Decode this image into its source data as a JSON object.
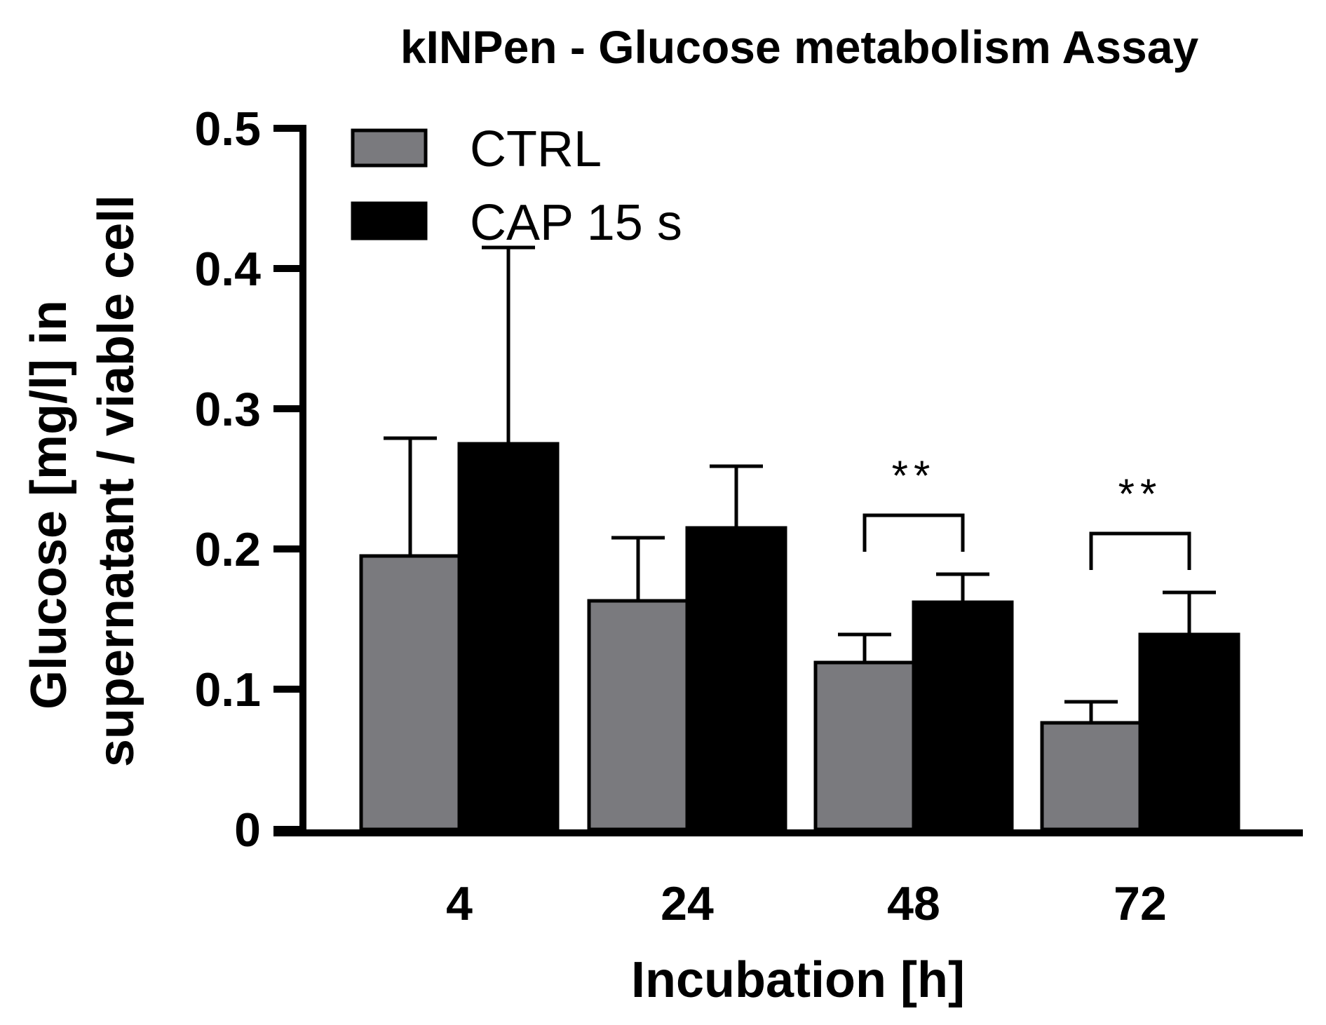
{
  "chart_data": {
    "type": "bar",
    "title": "kINPen - Glucose metabolism Assay",
    "xlabel": "Incubation [h]",
    "ylabel_line1": "Glucose [mg/l] in",
    "ylabel_line2": "supernatant / viable cell",
    "ylim": [
      0,
      0.5
    ],
    "yticks": [
      0,
      0.1,
      0.2,
      0.3,
      0.4,
      0.5
    ],
    "ytick_labels": [
      "0",
      "0.1",
      "0.2",
      "0.3",
      "0.4",
      "0.5"
    ],
    "categories": [
      "4",
      "24",
      "48",
      "72"
    ],
    "series": [
      {
        "name": "CTRL",
        "color": "#7a7a7e",
        "values": [
          0.195,
          0.163,
          0.119,
          0.076
        ],
        "errors": [
          0.084,
          0.045,
          0.02,
          0.015
        ]
      },
      {
        "name": "CAP 15 s",
        "color": "#000000",
        "values": [
          0.275,
          0.215,
          0.162,
          0.139
        ],
        "errors": [
          0.14,
          0.044,
          0.02,
          0.03
        ]
      }
    ],
    "significance": [
      {
        "category": "48",
        "label": "**"
      },
      {
        "category": "72",
        "label": "**"
      }
    ],
    "legend_position": "top-left",
    "grid": false
  }
}
